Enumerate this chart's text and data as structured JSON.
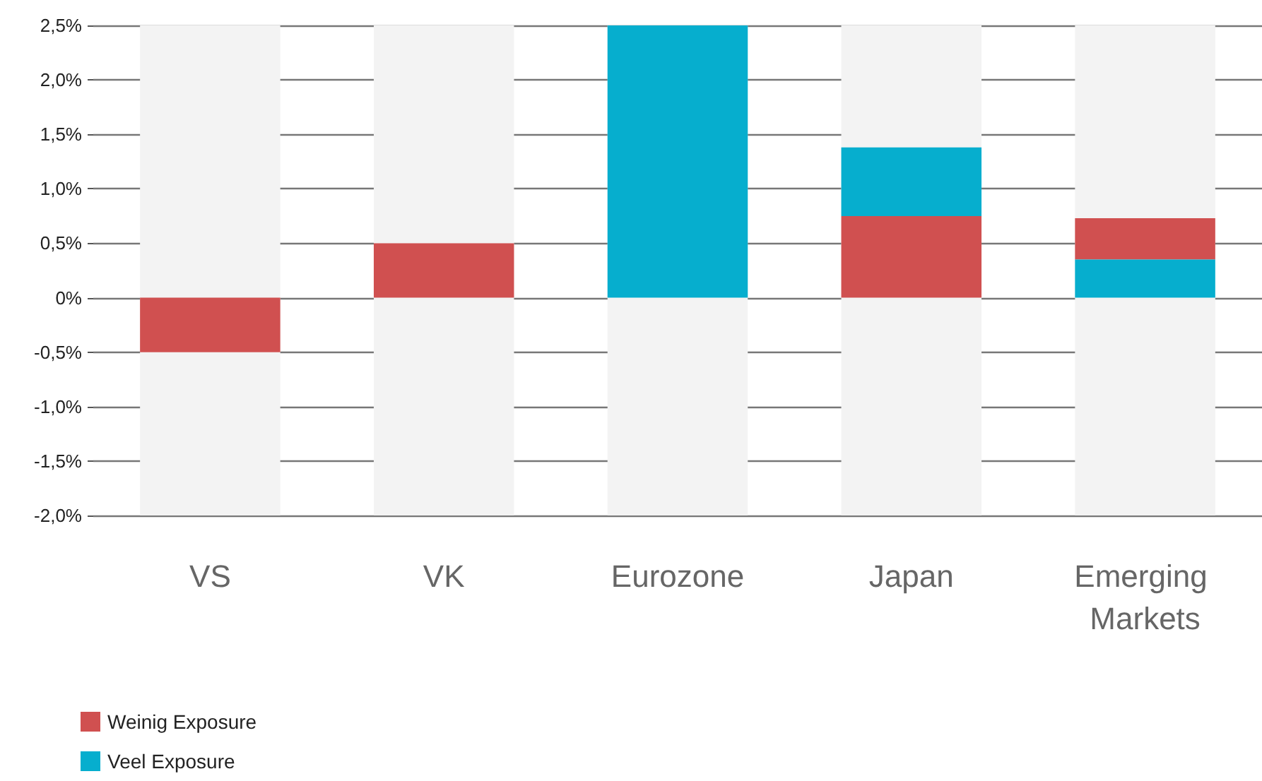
{
  "chart_data": {
    "type": "bar",
    "categories": [
      "VS",
      "VK",
      "Eurozone",
      "Japan",
      "Emerging Markets"
    ],
    "series": [
      {
        "name": "Weinig Exposure",
        "color": "#d05050",
        "base": [
          0,
          0,
          null,
          0,
          0.35
        ],
        "values": [
          -0.5,
          0.5,
          null,
          0.75,
          0.38
        ]
      },
      {
        "name": "Veel Exposure",
        "color": "#06aece",
        "base": [
          null,
          null,
          0,
          0.75,
          0
        ],
        "values": [
          null,
          null,
          2.5,
          0.63,
          0.35
        ]
      }
    ],
    "ylim": [
      -2,
      2.5
    ],
    "yticks": [
      {
        "value": -2,
        "label": "-2,0%"
      },
      {
        "value": -1.5,
        "label": "-1,5%"
      },
      {
        "value": -1,
        "label": "-1,0%"
      },
      {
        "value": -0.5,
        "label": "-0,5%"
      },
      {
        "value": 0,
        "label": "0%"
      },
      {
        "value": 0.5,
        "label": "0,5%"
      },
      {
        "value": 1,
        "label": "1,0%"
      },
      {
        "value": 1.5,
        "label": "1,5%"
      },
      {
        "value": 2,
        "label": "2,0%"
      },
      {
        "value": 2.5,
        "label": "2,5%"
      }
    ],
    "grid": "y",
    "legend": "bottom left"
  }
}
